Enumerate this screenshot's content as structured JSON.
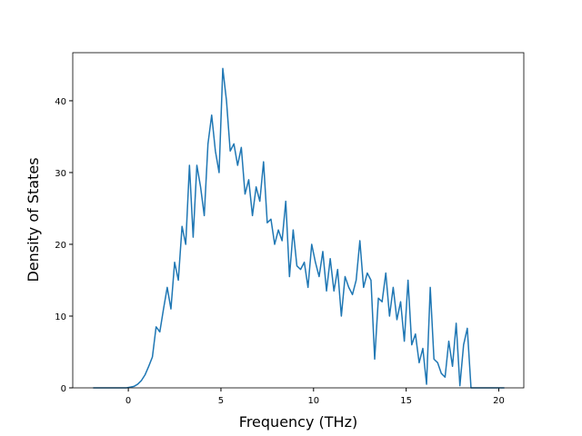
{
  "chart_data": {
    "type": "line",
    "x_label": "Frequency (THz)",
    "y_label": "Density of States",
    "x": [
      -1.9,
      -1.7,
      -1.5,
      -1.3,
      -1.1,
      -0.9,
      -0.7,
      -0.5,
      -0.3,
      -0.1,
      0.1,
      0.3,
      0.5,
      0.7,
      0.9,
      1.1,
      1.3,
      1.5,
      1.7,
      1.9,
      2.1,
      2.3,
      2.5,
      2.7,
      2.9,
      3.1,
      3.3,
      3.5,
      3.7,
      3.9,
      4.1,
      4.3,
      4.5,
      4.7,
      4.9,
      5.1,
      5.3,
      5.5,
      5.7,
      5.9,
      6.1,
      6.3,
      6.5,
      6.7,
      6.9,
      7.1,
      7.3,
      7.5,
      7.7,
      7.9,
      8.1,
      8.3,
      8.5,
      8.7,
      8.9,
      9.1,
      9.3,
      9.5,
      9.7,
      9.9,
      10.1,
      10.3,
      10.5,
      10.7,
      10.9,
      11.1,
      11.3,
      11.5,
      11.7,
      11.9,
      12.1,
      12.3,
      12.5,
      12.7,
      12.9,
      13.1,
      13.3,
      13.5,
      13.7,
      13.9,
      14.1,
      14.3,
      14.5,
      14.7,
      14.9,
      15.1,
      15.3,
      15.5,
      15.7,
      15.9,
      16.1,
      16.3,
      16.5,
      16.7,
      16.9,
      17.1,
      17.3,
      17.5,
      17.7,
      17.9,
      18.1,
      18.3,
      18.5,
      18.7,
      18.9,
      19.1,
      19.3,
      19.5,
      19.7,
      19.9,
      20.1,
      20.3
    ],
    "series": [
      {
        "color": "#1f77b4",
        "values": [
          0,
          0,
          0,
          0,
          0,
          0,
          0,
          0,
          0,
          0,
          0.1,
          0.2,
          0.5,
          1.0,
          1.8,
          3.0,
          4.3,
          8.5,
          7.8,
          11,
          14,
          11,
          17.5,
          15,
          22.5,
          20,
          31,
          21,
          31,
          28,
          24,
          34,
          38,
          33,
          30,
          44.5,
          40,
          33,
          34,
          31,
          33.5,
          27,
          29,
          24,
          28,
          26,
          31.5,
          23,
          23.5,
          20,
          22,
          20.5,
          26,
          15.5,
          22,
          17,
          16.5,
          17.5,
          14,
          20,
          17.5,
          15.5,
          19,
          13.5,
          18,
          13.5,
          16.5,
          10,
          15.5,
          14,
          13,
          15,
          20.5,
          14,
          16,
          15,
          4,
          12.5,
          12,
          16,
          10,
          14,
          9.5,
          12,
          6.5,
          15,
          6,
          7.5,
          3.5,
          5.5,
          0.5,
          14,
          4,
          3.5,
          2,
          1.5,
          6.5,
          3,
          9,
          0.3,
          6,
          8.3,
          0,
          0,
          0,
          0,
          0,
          0,
          0,
          0,
          0,
          0
        ]
      }
    ],
    "xlim": [
      -3,
      21.35
    ],
    "ylim": [
      0,
      46.7
    ],
    "xticks": [
      0,
      5,
      10,
      15,
      20
    ],
    "yticks": [
      0,
      10,
      20,
      30,
      40
    ]
  }
}
